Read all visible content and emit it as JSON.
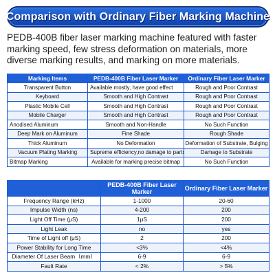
{
  "banner": {
    "title": "Comparison with Ordinary Fiber Marking Machine"
  },
  "intro": "PEDB-400B fiber laser marking machine featured with faster marking speed, few stress deformation on materials, more diverse marking results, and marking on more materials.",
  "table1": {
    "headers": [
      "Marking Items",
      "PEDB-400B Fiber Laser Marker",
      "Ordinary Fiber Laser Marker"
    ],
    "rows": [
      [
        "Transparent Button",
        "Available mostly, have good effect",
        "Rough and Poor Contrast"
      ],
      [
        "Keyboard",
        "Smooth and High Contrast",
        "Rough and Poor Contrast"
      ],
      [
        "Plastic Mobile Cell",
        "Smooth and High Contrast",
        "Rough and Poor Contrast"
      ],
      [
        "Mobile Charger",
        "Smooth and High Contrast",
        "Rough and Poor Contrast"
      ],
      [
        "Anodised Aluminum",
        "Smooth and Non-Handle",
        "No Such Function"
      ],
      [
        "Deep Mark on Aluminum",
        "Fine Shade",
        "Rough Shade"
      ],
      [
        "Thick Aluminum",
        "No Deformation",
        "Deformation of Substrate, Bulging"
      ],
      [
        "Vacuum Plating Marking",
        "Supreme efficiency,no damage to parts",
        "Damage to Substrate"
      ],
      [
        "Bitmap Marking",
        "Available for marking precise bitmap",
        "No Such Function"
      ]
    ]
  },
  "table2": {
    "headers": [
      "",
      "PEDB-400B Fiber Laser Marker",
      "Ordinary Fiber Laser Marker"
    ],
    "rows": [
      [
        "Frequency Range (kHz)",
        "1-1000",
        "20-60"
      ],
      [
        "Impulse Width (ns)",
        "4-200",
        "200"
      ],
      [
        "Light Off Time (μS)",
        "1μS",
        "200"
      ],
      [
        "Light Leak",
        "no",
        "yes"
      ],
      [
        "Time of Light off (μS)",
        "2",
        "200"
      ],
      [
        "Power Stability for Long Time",
        "<3%",
        "<4%"
      ],
      [
        "Diameter Of Laser Beam（mm）",
        "6-9",
        "6-9"
      ],
      [
        "Fault Rate",
        "< 2%",
        "> 5%"
      ]
    ]
  }
}
